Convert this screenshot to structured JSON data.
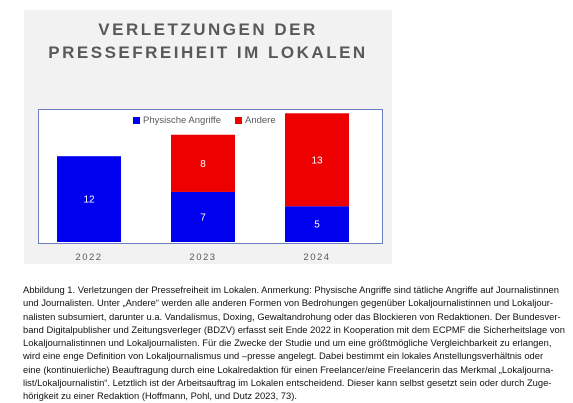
{
  "chart_data": {
    "type": "bar",
    "stacked": true,
    "title_lines": [
      "VERLETZUNGEN DER",
      "PRESSEFREIHEIT IM LOKALEN"
    ],
    "categories": [
      "2022",
      "2023",
      "2024"
    ],
    "series": [
      {
        "name": "Physische Angriffe",
        "color": "#0000ee",
        "values": [
          12,
          7,
          5
        ]
      },
      {
        "name": "Andere",
        "color": "#ee0000",
        "values": [
          null,
          8,
          13
        ]
      }
    ],
    "ylim": [
      0,
      20
    ],
    "grid": false,
    "legend": "top-center"
  },
  "caption": {
    "lines": [
      "Abbildung 1. Verletzungen der Pressefreiheit im Lokalen. Anmerkung: Physische Angriffe sind tätliche Angriffe auf Journalistinnen",
      "und Journalisten. Unter „Andere“ werden alle anderen Formen von Bedrohungen gegenüber Lokaljournalistinnen und Lokaljour-",
      "nalisten subsumiert, darunter u.a. Vandalismus, Doxing, Gewaltandrohung oder das Blockieren von Redaktionen. Der Bundesver-",
      "band Digitalpublisher und Zeitungsverleger (BDZV) erfasst seit Ende 2022 in Kooperation mit dem ECPMF die Sicherheitslage von",
      "Lokaljournalistinnen und Lokaljournalisten. Für die Zwecke der Studie und um eine größtmögliche Vergleichbarkeit zu erlangen,",
      "wird eine enge Definition von Lokaljournalismus und –presse angelegt. Dabei bestimmt ein lokales Anstellungsverhältnis oder",
      "eine (kontinuierliche) Beauftragung durch eine Lokalredaktion für einen Freelancer/eine Freelancerin das Merkmal „Lokaljourna-",
      "list/Lokaljournalistin“. Letztlich ist der Arbeitsauftrag im Lokalen entscheidend. Dieser kann selbst gesetzt sein oder durch Zuge-",
      "hörigkeit zu einer Redaktion (Hoffmann, Pohl, und Dutz 2023, 73)."
    ]
  }
}
